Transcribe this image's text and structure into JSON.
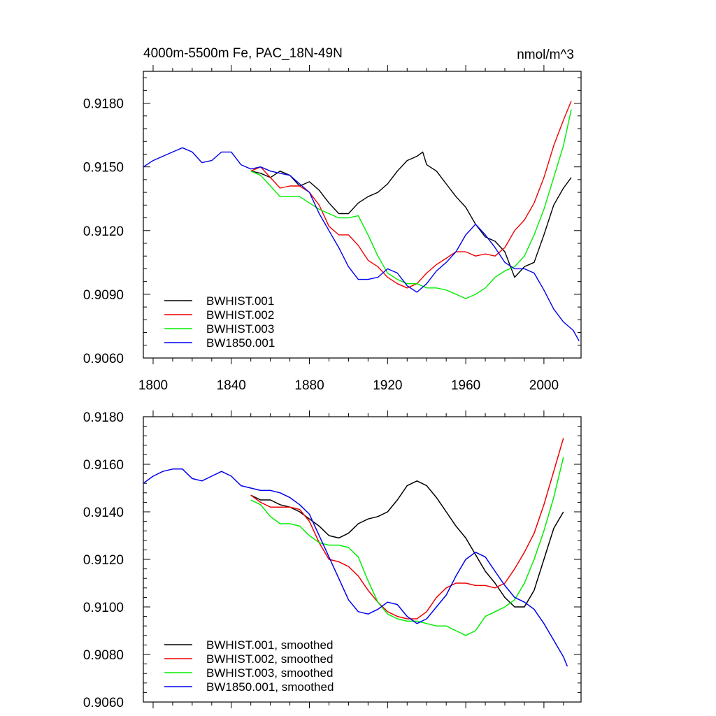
{
  "colors": {
    "BWHIST.001": "#000000",
    "BWHIST.002": "#ee0000",
    "BWHIST.003": "#00ee00",
    "BW1850.001": "#0000ee"
  },
  "chart_data": [
    {
      "type": "line",
      "title": "4000m-5500m Fe, PAC_18N-49N",
      "units_label": "nmol/m^3",
      "xlabel": "",
      "ylabel": "",
      "xlim": [
        1795,
        2019
      ],
      "ylim": [
        0.906,
        0.9195
      ],
      "x_ticks": [
        1800,
        1840,
        1880,
        1920,
        1960,
        2000
      ],
      "x_tick_labels": [
        "1800",
        "1840",
        "1880",
        "1920",
        "1960",
        "2000"
      ],
      "y_ticks": [
        0.906,
        0.909,
        0.912,
        0.915,
        0.918
      ],
      "y_tick_labels": [
        "0.9060",
        "0.9090",
        "0.9120",
        "0.9150",
        "0.9180"
      ],
      "legend_position": "bottom-left",
      "series": [
        {
          "name": "BWHIST.001",
          "x": [
            1850,
            1855,
            1860,
            1865,
            1870,
            1875,
            1880,
            1885,
            1890,
            1895,
            1900,
            1905,
            1910,
            1915,
            1920,
            1925,
            1930,
            1935,
            1938,
            1940,
            1945,
            1950,
            1955,
            1960,
            1965,
            1970,
            1975,
            1980,
            1985,
            1990,
            1995,
            2000,
            2005,
            2010,
            2014
          ],
          "y": [
            0.9148,
            0.9147,
            0.9145,
            0.9148,
            0.9146,
            0.9141,
            0.9143,
            0.9139,
            0.9133,
            0.9128,
            0.9128,
            0.9133,
            0.9136,
            0.9138,
            0.9142,
            0.9148,
            0.9153,
            0.9155,
            0.9157,
            0.9151,
            0.9148,
            0.9142,
            0.9136,
            0.9131,
            0.9123,
            0.9117,
            0.9115,
            0.911,
            0.9098,
            0.9103,
            0.9105,
            0.9118,
            0.9132,
            0.914,
            0.9145
          ]
        },
        {
          "name": "BWHIST.002",
          "x": [
            1850,
            1855,
            1860,
            1865,
            1870,
            1875,
            1880,
            1885,
            1890,
            1895,
            1900,
            1905,
            1910,
            1915,
            1920,
            1925,
            1930,
            1935,
            1940,
            1945,
            1950,
            1955,
            1960,
            1965,
            1970,
            1975,
            1980,
            1985,
            1990,
            1995,
            2000,
            2005,
            2010,
            2014
          ],
          "y": [
            0.9148,
            0.915,
            0.9145,
            0.914,
            0.9141,
            0.9141,
            0.9138,
            0.9132,
            0.9122,
            0.9118,
            0.9118,
            0.9113,
            0.9106,
            0.9103,
            0.9098,
            0.9095,
            0.9093,
            0.9095,
            0.91,
            0.9104,
            0.9107,
            0.911,
            0.911,
            0.9108,
            0.9109,
            0.9108,
            0.9112,
            0.912,
            0.9125,
            0.9133,
            0.9145,
            0.916,
            0.9172,
            0.9181
          ]
        },
        {
          "name": "BWHIST.003",
          "x": [
            1850,
            1855,
            1860,
            1865,
            1870,
            1875,
            1880,
            1885,
            1890,
            1895,
            1900,
            1905,
            1910,
            1915,
            1920,
            1925,
            1930,
            1935,
            1940,
            1945,
            1950,
            1955,
            1960,
            1965,
            1970,
            1975,
            1980,
            1985,
            1990,
            1995,
            2000,
            2005,
            2010,
            2014
          ],
          "y": [
            0.9148,
            0.9146,
            0.9141,
            0.9136,
            0.9136,
            0.9136,
            0.9133,
            0.913,
            0.9128,
            0.9126,
            0.9126,
            0.9127,
            0.9118,
            0.9108,
            0.91,
            0.9097,
            0.9095,
            0.9095,
            0.9093,
            0.9093,
            0.9092,
            0.909,
            0.9088,
            0.909,
            0.9093,
            0.9098,
            0.9101,
            0.9103,
            0.9108,
            0.9118,
            0.913,
            0.9145,
            0.916,
            0.9177
          ]
        },
        {
          "name": "BW1850.001",
          "x": [
            1795,
            1800,
            1805,
            1810,
            1815,
            1820,
            1825,
            1830,
            1835,
            1840,
            1845,
            1850,
            1855,
            1860,
            1865,
            1870,
            1875,
            1880,
            1885,
            1890,
            1895,
            1900,
            1905,
            1910,
            1915,
            1920,
            1925,
            1930,
            1935,
            1940,
            1945,
            1950,
            1955,
            1960,
            1965,
            1970,
            1975,
            1980,
            1985,
            1990,
            1995,
            2000,
            2005,
            2010,
            2015,
            2018
          ],
          "y": [
            0.915,
            0.9153,
            0.9155,
            0.9157,
            0.9159,
            0.9157,
            0.9152,
            0.9153,
            0.9157,
            0.9157,
            0.9151,
            0.9149,
            0.915,
            0.9148,
            0.9147,
            0.9146,
            0.9142,
            0.9138,
            0.9128,
            0.912,
            0.9112,
            0.9103,
            0.9097,
            0.9097,
            0.9098,
            0.9102,
            0.91,
            0.9094,
            0.9091,
            0.9095,
            0.9101,
            0.9105,
            0.911,
            0.9118,
            0.9123,
            0.9118,
            0.9112,
            0.9105,
            0.9102,
            0.9102,
            0.91,
            0.9092,
            0.9083,
            0.9077,
            0.9073,
            0.9068
          ]
        }
      ]
    },
    {
      "type": "line",
      "title": "",
      "xlabel": "",
      "ylabel": "",
      "xlim": [
        1795,
        2019
      ],
      "ylim": [
        0.906,
        0.918
      ],
      "x_ticks": [
        1800,
        1840,
        1880,
        1920,
        1960,
        2000
      ],
      "x_tick_labels": [],
      "y_ticks": [
        0.906,
        0.908,
        0.91,
        0.912,
        0.914,
        0.916,
        0.918
      ],
      "y_tick_labels": [
        "0.9060",
        "0.9080",
        "0.9100",
        "0.9120",
        "0.9140",
        "0.9160",
        "0.9180"
      ],
      "legend_position": "bottom-left",
      "series": [
        {
          "name": "BWHIST.001, smoothed",
          "key": "BWHIST.001",
          "x": [
            1850,
            1855,
            1860,
            1865,
            1870,
            1875,
            1880,
            1885,
            1890,
            1895,
            1900,
            1905,
            1910,
            1915,
            1920,
            1925,
            1930,
            1935,
            1940,
            1945,
            1950,
            1955,
            1960,
            1965,
            1970,
            1975,
            1980,
            1985,
            1990,
            1995,
            2000,
            2005,
            2010
          ],
          "y": [
            0.9147,
            0.9145,
            0.9145,
            0.9143,
            0.9142,
            0.914,
            0.9137,
            0.9134,
            0.913,
            0.9129,
            0.9131,
            0.9135,
            0.9137,
            0.9138,
            0.914,
            0.9145,
            0.9151,
            0.9153,
            0.9151,
            0.9146,
            0.914,
            0.9134,
            0.9129,
            0.9122,
            0.9115,
            0.911,
            0.9104,
            0.91,
            0.91,
            0.9107,
            0.912,
            0.9133,
            0.914
          ]
        },
        {
          "name": "BWHIST.002, smoothed",
          "key": "BWHIST.002",
          "x": [
            1850,
            1855,
            1860,
            1865,
            1870,
            1875,
            1880,
            1885,
            1890,
            1895,
            1900,
            1905,
            1910,
            1915,
            1920,
            1925,
            1930,
            1935,
            1940,
            1945,
            1950,
            1955,
            1960,
            1965,
            1970,
            1975,
            1980,
            1985,
            1990,
            1995,
            2000,
            2005,
            2010
          ],
          "y": [
            0.9147,
            0.9144,
            0.9142,
            0.9142,
            0.9142,
            0.9141,
            0.9136,
            0.9127,
            0.912,
            0.9119,
            0.9117,
            0.9113,
            0.9107,
            0.9102,
            0.9098,
            0.9096,
            0.9095,
            0.9095,
            0.9098,
            0.9104,
            0.9108,
            0.911,
            0.911,
            0.9109,
            0.9109,
            0.9108,
            0.911,
            0.9116,
            0.9123,
            0.9131,
            0.9143,
            0.9157,
            0.9171
          ]
        },
        {
          "name": "BWHIST.003, smoothed",
          "key": "BWHIST.003",
          "x": [
            1850,
            1855,
            1860,
            1865,
            1870,
            1875,
            1880,
            1885,
            1890,
            1895,
            1900,
            1905,
            1910,
            1915,
            1920,
            1925,
            1930,
            1935,
            1940,
            1945,
            1950,
            1955,
            1960,
            1965,
            1970,
            1975,
            1980,
            1985,
            1990,
            1995,
            2000,
            2005,
            2010
          ],
          "y": [
            0.9145,
            0.9143,
            0.9138,
            0.9135,
            0.9135,
            0.9134,
            0.913,
            0.9127,
            0.9126,
            0.9126,
            0.9125,
            0.9121,
            0.9111,
            0.9102,
            0.9097,
            0.9095,
            0.9094,
            0.9094,
            0.9093,
            0.9092,
            0.9092,
            0.909,
            0.9088,
            0.909,
            0.9096,
            0.9098,
            0.91,
            0.9103,
            0.911,
            0.912,
            0.9132,
            0.9146,
            0.9163
          ]
        },
        {
          "name": "BW1850.001, smoothed",
          "key": "BW1850.001",
          "x": [
            1795,
            1800,
            1805,
            1810,
            1815,
            1820,
            1825,
            1830,
            1835,
            1840,
            1845,
            1850,
            1855,
            1860,
            1865,
            1870,
            1875,
            1880,
            1885,
            1890,
            1895,
            1900,
            1905,
            1910,
            1915,
            1920,
            1925,
            1930,
            1935,
            1940,
            1945,
            1950,
            1955,
            1960,
            1965,
            1970,
            1975,
            1980,
            1985,
            1990,
            1995,
            2000,
            2005,
            2010,
            2012
          ],
          "y": [
            0.9152,
            0.9155,
            0.9157,
            0.9158,
            0.9158,
            0.9154,
            0.9153,
            0.9155,
            0.9157,
            0.9155,
            0.9151,
            0.915,
            0.9149,
            0.9149,
            0.9148,
            0.9146,
            0.9143,
            0.9139,
            0.913,
            0.9121,
            0.9112,
            0.9103,
            0.9098,
            0.9097,
            0.9099,
            0.9102,
            0.9101,
            0.9096,
            0.9093,
            0.9095,
            0.91,
            0.9105,
            0.9113,
            0.912,
            0.9123,
            0.9121,
            0.9115,
            0.9109,
            0.9104,
            0.9102,
            0.9099,
            0.9093,
            0.9086,
            0.9079,
            0.9075
          ]
        }
      ]
    }
  ]
}
